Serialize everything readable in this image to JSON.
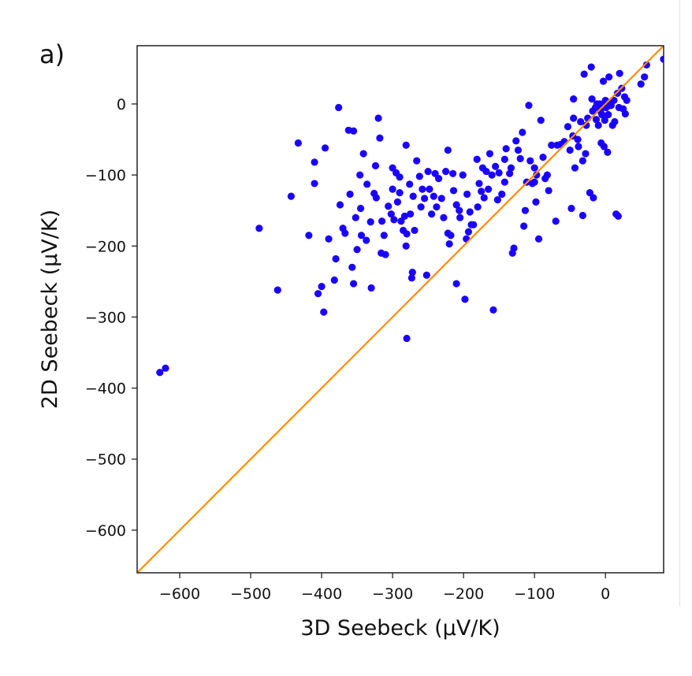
{
  "panel_label": "a)",
  "colors": {
    "points": "#1a00ff",
    "diagonal": "#ff8c00",
    "axes": "#222222"
  },
  "chart_data": {
    "type": "scatter",
    "title": "",
    "xlabel": "3D Seebeck (μV/K)",
    "ylabel": "2D Seebeck (μV/K)",
    "xlim": [
      -660,
      82
    ],
    "ylim": [
      -660,
      82
    ],
    "xticks": [
      -600,
      -500,
      -400,
      -300,
      -200,
      -100,
      0
    ],
    "yticks": [
      -600,
      -500,
      -400,
      -300,
      -200,
      -100,
      0
    ],
    "grid": false,
    "legend": "none",
    "reference_line": {
      "type": "y=x",
      "color": "#ff8c00"
    },
    "series": [
      {
        "marker_color": "#1a00ff",
        "points": [
          [
            -628,
            -378
          ],
          [
            -620,
            -372
          ],
          [
            -488,
            -175
          ],
          [
            -462,
            -262
          ],
          [
            -443,
            -130
          ],
          [
            -433,
            -55
          ],
          [
            -418,
            -185
          ],
          [
            -410,
            -82
          ],
          [
            -410,
            -112
          ],
          [
            -405,
            -267
          ],
          [
            -400,
            -257
          ],
          [
            -397,
            -293
          ],
          [
            -395,
            -62
          ],
          [
            -390,
            -190
          ],
          [
            -382,
            -248
          ],
          [
            -380,
            -218
          ],
          [
            -376,
            -5
          ],
          [
            -374,
            -142
          ],
          [
            -370,
            -175
          ],
          [
            -367,
            -182
          ],
          [
            -362,
            -37
          ],
          [
            -360,
            -127
          ],
          [
            -357,
            -230
          ],
          [
            -355,
            -253
          ],
          [
            -355,
            -38
          ],
          [
            -352,
            -160
          ],
          [
            -350,
            -205
          ],
          [
            -346,
            -100
          ],
          [
            -345,
            -147
          ],
          [
            -344,
            -185
          ],
          [
            -341,
            -70
          ],
          [
            -337,
            -192
          ],
          [
            -336,
            -113
          ],
          [
            -331,
            -166
          ],
          [
            -330,
            -259
          ],
          [
            -326,
            -126
          ],
          [
            -324,
            -87
          ],
          [
            -323,
            -132
          ],
          [
            -320,
            -20
          ],
          [
            -318,
            -48
          ],
          [
            -316,
            -210
          ],
          [
            -315,
            -165
          ],
          [
            -312,
            -185
          ],
          [
            -310,
            -212
          ],
          [
            -306,
            -144
          ],
          [
            -302,
            -155
          ],
          [
            -300,
            -90
          ],
          [
            -300,
            -120
          ],
          [
            -298,
            -163
          ],
          [
            -295,
            -97
          ],
          [
            -293,
            -138
          ],
          [
            -290,
            -103
          ],
          [
            -290,
            -125
          ],
          [
            -288,
            -165
          ],
          [
            -285,
            -178
          ],
          [
            -283,
            -158
          ],
          [
            -281,
            -200
          ],
          [
            -281,
            -58
          ],
          [
            -280,
            -330
          ],
          [
            -280,
            -183
          ],
          [
            -276,
            -113
          ],
          [
            -275,
            -155
          ],
          [
            -273,
            -245
          ],
          [
            -272,
            -237
          ],
          [
            -271,
            -130
          ],
          [
            -269,
            -178
          ],
          [
            -266,
            -80
          ],
          [
            -262,
            -102
          ],
          [
            -260,
            -145
          ],
          [
            -258,
            -120
          ],
          [
            -255,
            -133
          ],
          [
            -252,
            -241
          ],
          [
            -250,
            -95
          ],
          [
            -248,
            -120
          ],
          [
            -245,
            -155
          ],
          [
            -242,
            -130
          ],
          [
            -240,
            -98
          ],
          [
            -238,
            -145
          ],
          [
            -235,
            -105
          ],
          [
            -231,
            -133
          ],
          [
            -228,
            -160
          ],
          [
            -225,
            -95
          ],
          [
            -222,
            -65
          ],
          [
            -222,
            -182
          ],
          [
            -220,
            -197
          ],
          [
            -218,
            -185
          ],
          [
            -215,
            -98
          ],
          [
            -214,
            -122
          ],
          [
            -210,
            -253
          ],
          [
            -210,
            -142
          ],
          [
            -206,
            -150
          ],
          [
            -205,
            -160
          ],
          [
            -201,
            -100
          ],
          [
            -198,
            -275
          ],
          [
            -196,
            -190
          ],
          [
            -195,
            -127
          ],
          [
            -193,
            -180
          ],
          [
            -191,
            -152
          ],
          [
            -189,
            -170
          ],
          [
            -186,
            -170
          ],
          [
            -181,
            -78
          ],
          [
            -180,
            -145
          ],
          [
            -178,
            -112
          ],
          [
            -175,
            -123
          ],
          [
            -173,
            -90
          ],
          [
            -171,
            -132
          ],
          [
            -168,
            -95
          ],
          [
            -165,
            -120
          ],
          [
            -163,
            -70
          ],
          [
            -160,
            -100
          ],
          [
            -158,
            -290
          ],
          [
            -155,
            -88
          ],
          [
            -152,
            -135
          ],
          [
            -150,
            -97
          ],
          [
            -146,
            -127
          ],
          [
            -142,
            -78
          ],
          [
            -142,
            -110
          ],
          [
            -140,
            -63
          ],
          [
            -135,
            -98
          ],
          [
            -133,
            -90
          ],
          [
            -131,
            -210
          ],
          [
            -129,
            -203
          ],
          [
            -126,
            -52
          ],
          [
            -123,
            -65
          ],
          [
            -120,
            -77
          ],
          [
            -117,
            -40
          ],
          [
            -115,
            -172
          ],
          [
            -113,
            -150
          ],
          [
            -111,
            -110
          ],
          [
            -108,
            -2
          ],
          [
            -106,
            -80
          ],
          [
            -103,
            -112
          ],
          [
            -100,
            -110
          ],
          [
            -100,
            -90
          ],
          [
            -98,
            -138
          ],
          [
            -97,
            -100
          ],
          [
            -94,
            -190
          ],
          [
            -91,
            -23
          ],
          [
            -88,
            -75
          ],
          [
            -85,
            -105
          ],
          [
            -82,
            -100
          ],
          [
            -80,
            -122
          ],
          [
            -76,
            -58
          ],
          [
            -70,
            -165
          ],
          [
            -68,
            -58
          ],
          [
            -63,
            -57
          ],
          [
            -58,
            -53
          ],
          [
            -53,
            -32
          ],
          [
            -50,
            -65
          ],
          [
            -48,
            -147
          ],
          [
            -46,
            -45
          ],
          [
            -45,
            -20
          ],
          [
            -45,
            7
          ],
          [
            -43,
            -90
          ],
          [
            -39,
            -50
          ],
          [
            -38,
            -60
          ],
          [
            -35,
            -25
          ],
          [
            -32,
            -80
          ],
          [
            -32,
            -157
          ],
          [
            -30,
            42
          ],
          [
            -28,
            -70
          ],
          [
            -27,
            -30
          ],
          [
            -25,
            -20
          ],
          [
            -22,
            -125
          ],
          [
            -20,
            52
          ],
          [
            -19,
            7
          ],
          [
            -18,
            -10
          ],
          [
            -17,
            -132
          ],
          [
            -14,
            -5
          ],
          [
            -13,
            -22
          ],
          [
            -12,
            0
          ],
          [
            -10,
            -30
          ],
          [
            -9,
            -5
          ],
          [
            -8,
            0
          ],
          [
            -7,
            -10
          ],
          [
            -6,
            -55
          ],
          [
            -5,
            -15
          ],
          [
            -4,
            -3
          ],
          [
            -3,
            32
          ],
          [
            -2,
            -60
          ],
          [
            -1,
            -23
          ],
          [
            0,
            5
          ],
          [
            1,
            -5
          ],
          [
            3,
            -68
          ],
          [
            4,
            -15
          ],
          [
            5,
            38
          ],
          [
            6,
            0
          ],
          [
            7,
            -2
          ],
          [
            8,
            -2
          ],
          [
            10,
            -30
          ],
          [
            12,
            5
          ],
          [
            13,
            -25
          ],
          [
            15,
            -155
          ],
          [
            17,
            15
          ],
          [
            18,
            -158
          ],
          [
            19,
            -5
          ],
          [
            20,
            43
          ],
          [
            23,
            22
          ],
          [
            25,
            -7
          ],
          [
            27,
            10
          ],
          [
            28,
            -14
          ],
          [
            30,
            5
          ],
          [
            50,
            28
          ],
          [
            55,
            38
          ],
          [
            58,
            55
          ],
          [
            82,
            63
          ]
        ]
      }
    ]
  }
}
